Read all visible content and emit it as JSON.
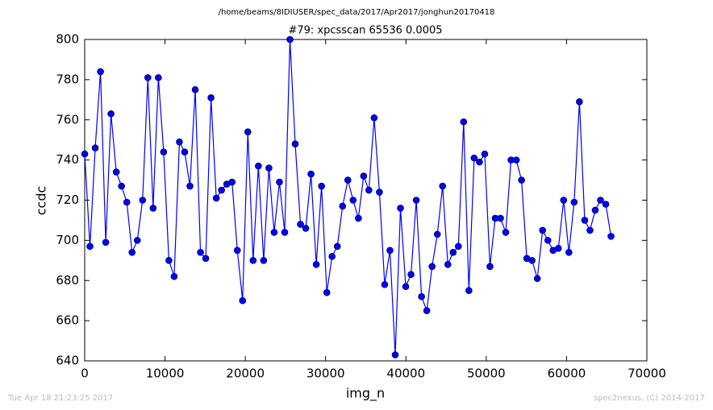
{
  "header": "/home/beams/8IDIUSER/spec_data/2017/Apr2017/jonghun20170418",
  "footer_left": "Tue Apr 18 21:23:25 2017",
  "footer_right": "spec2nexus, (C) 2014-2017",
  "chart_data": {
    "type": "line",
    "title": "#79: xpcsscan 65536 0.0005",
    "x_label": "img_n",
    "y_label": "ccdc",
    "xlim": [
      0,
      70000
    ],
    "xticks": [
      0,
      10000,
      20000,
      30000,
      40000,
      50000,
      60000,
      70000
    ],
    "ylim": [
      640,
      800
    ],
    "yticks": [
      640,
      660,
      680,
      700,
      720,
      740,
      760,
      780,
      800
    ],
    "grid": false,
    "marker": "circle",
    "x": [
      0,
      655.36,
      1310.72,
      1966.08,
      2621.44,
      3276.8,
      3932.16,
      4587.52,
      5242.88,
      5898.24,
      6553.6,
      7208.96,
      7864.32,
      8519.68,
      9175.04,
      9830.4,
      10485.76,
      11141.12,
      11796.48,
      12451.84,
      13107.2,
      13762.56,
      14417.92,
      15073.28,
      15728.64,
      16384,
      17039.36,
      17694.72,
      18350.08,
      19005.44,
      19660.8,
      20316.16,
      20971.52,
      21626.88,
      22282.24,
      22937.6,
      23592.96,
      24248.32,
      24903.68,
      25559.04,
      26214.4,
      26869.76,
      27525.12,
      28180.48,
      28835.84,
      29491.2,
      30146.56,
      30801.92,
      31457.28,
      32112.64,
      32768,
      33423.36,
      34078.72,
      34734.08,
      35389.44,
      36044.8,
      36700.16,
      37355.52,
      38010.88,
      38666.24,
      39321.6,
      39976.96,
      40632.32,
      41287.68,
      41943.04,
      42598.4,
      43253.76,
      43909.12,
      44564.48,
      45219.84,
      45875.2,
      46530.56,
      47185.92,
      47841.28,
      48496.64,
      49152,
      49807.36,
      50462.72,
      51118.08,
      51773.44,
      52428.8,
      53084.16,
      53739.52,
      54394.88,
      55050.24,
      55705.6,
      56360.96,
      57016.32,
      57671.68,
      58327.04,
      58982.4,
      59637.76,
      60293.12,
      60948.48,
      61603.84,
      62259.2,
      62914.56,
      63569.92,
      64225.28,
      64880.64,
      65536
    ],
    "series": [
      {
        "name": "ccdc",
        "color": "#0000ff",
        "values": [
          743,
          697,
          746,
          784,
          699,
          763,
          734,
          727,
          719,
          694,
          700,
          720,
          781,
          716,
          781,
          744,
          690,
          682,
          749,
          744,
          727,
          775,
          694,
          691,
          771,
          721,
          725,
          728,
          729,
          695,
          670,
          754,
          690,
          737,
          690,
          736,
          704,
          729,
          704,
          800,
          748,
          708,
          706,
          733,
          688,
          727,
          674,
          692,
          697,
          717,
          730,
          720,
          711,
          732,
          725,
          761,
          724,
          678,
          695,
          643,
          716,
          677,
          683,
          720,
          672,
          665,
          687,
          703,
          727,
          688,
          694,
          697,
          759,
          675,
          741,
          739,
          743,
          687,
          711,
          711,
          704,
          740,
          740,
          730,
          691,
          690,
          681,
          705,
          700,
          695,
          696,
          720,
          694,
          719,
          769,
          710,
          705,
          715,
          720,
          718,
          702
        ]
      }
    ]
  }
}
